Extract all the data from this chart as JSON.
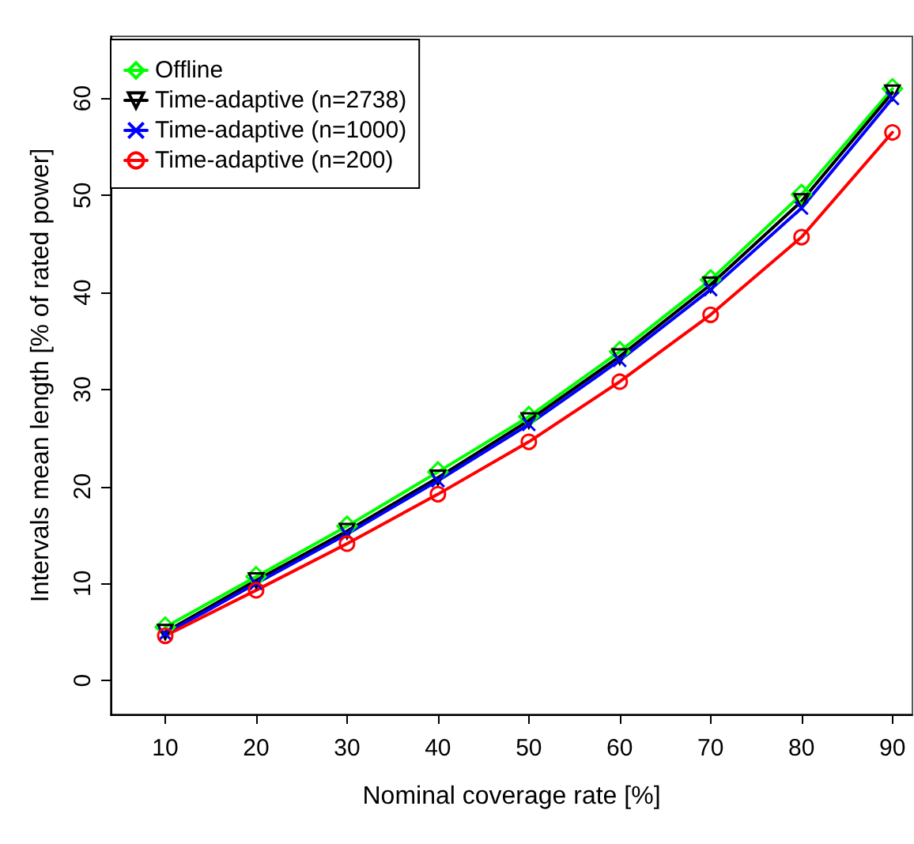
{
  "chart_data": {
    "type": "line",
    "xlabel": "Nominal coverage rate [%]",
    "ylabel": "Intervals mean length [% of rated power]",
    "x": [
      10,
      20,
      30,
      40,
      50,
      60,
      70,
      80,
      90
    ],
    "xlim": [
      4,
      92.2
    ],
    "xticks": [
      10,
      20,
      30,
      40,
      50,
      60,
      70,
      80,
      90
    ],
    "ylim": [
      -3.5,
      66.4
    ],
    "yticks": [
      0,
      10,
      20,
      30,
      40,
      50,
      60
    ],
    "grid": false,
    "legend": "top left",
    "line_style": "solid",
    "series": [
      {
        "name": "Offline",
        "color": "#00ff00",
        "marker": "diamond",
        "values": [
          5.5,
          10.7,
          15.9,
          21.5,
          27.2,
          33.9,
          41.3,
          50.1,
          61.0
        ]
      },
      {
        "name": "Time-adaptive (n=2738)",
        "color": "#000000",
        "marker": "triangle",
        "values": [
          5.0,
          10.3,
          15.4,
          20.9,
          26.8,
          33.4,
          40.8,
          49.4,
          60.6
        ]
      },
      {
        "name": "Time-adaptive (n=1000)",
        "color": "#0000ff",
        "marker": "cross",
        "values": [
          4.8,
          10.0,
          15.1,
          20.6,
          26.4,
          33.0,
          40.3,
          48.7,
          60.0
        ]
      },
      {
        "name": "Time-adaptive (n=200)",
        "color": "#ff0000",
        "marker": "circle",
        "values": [
          4.6,
          9.3,
          14.1,
          19.2,
          24.6,
          30.8,
          37.7,
          45.7,
          56.5
        ]
      }
    ]
  }
}
